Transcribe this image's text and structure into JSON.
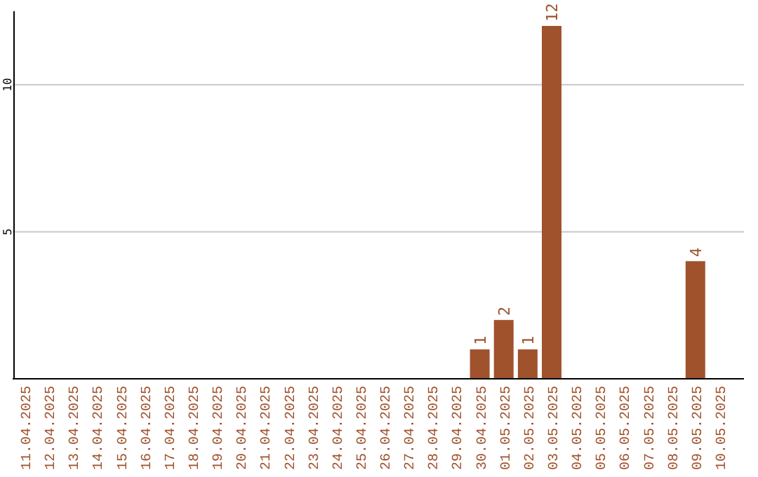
{
  "chart_data": {
    "type": "bar",
    "categories": [
      "11.04.2025",
      "12.04.2025",
      "13.04.2025",
      "14.04.2025",
      "15.04.2025",
      "16.04.2025",
      "17.04.2025",
      "18.04.2025",
      "19.04.2025",
      "20.04.2025",
      "21.04.2025",
      "22.04.2025",
      "23.04.2025",
      "24.04.2025",
      "25.04.2025",
      "26.04.2025",
      "27.04.2025",
      "28.04.2025",
      "29.04.2025",
      "30.04.2025",
      "01.05.2025",
      "02.05.2025",
      "03.05.2025",
      "04.05.2025",
      "05.05.2025",
      "06.05.2025",
      "07.05.2025",
      "08.05.2025",
      "09.05.2025",
      "10.05.2025"
    ],
    "values": [
      0,
      0,
      0,
      0,
      0,
      0,
      0,
      0,
      0,
      0,
      0,
      0,
      0,
      0,
      0,
      0,
      0,
      0,
      0,
      1,
      2,
      1,
      12,
      0,
      0,
      0,
      0,
      0,
      4,
      0
    ],
    "value_labels": [
      null,
      null,
      null,
      null,
      null,
      null,
      null,
      null,
      null,
      null,
      null,
      null,
      null,
      null,
      null,
      null,
      null,
      null,
      null,
      "1",
      "2",
      "1",
      "12",
      null,
      null,
      null,
      null,
      null,
      "4",
      null
    ],
    "color": "#a0522d",
    "ylim": [
      0,
      12.5
    ],
    "yticks": [
      5,
      10
    ],
    "grid": "y"
  }
}
